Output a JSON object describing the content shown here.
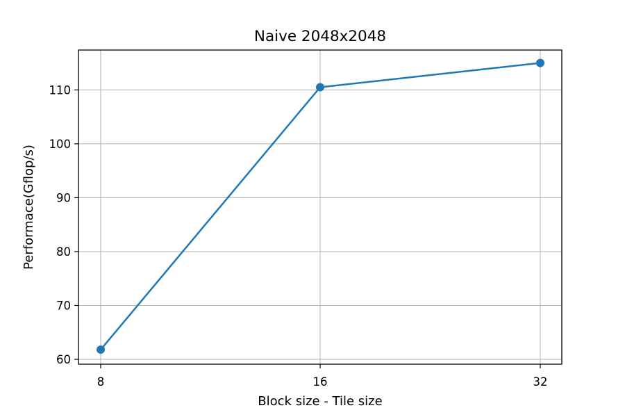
{
  "chart_data": {
    "type": "line",
    "title": "Naive 2048x2048",
    "xlabel": "Block size - Tile size",
    "ylabel": "Performace(Gflop/s)",
    "categories": [
      "8",
      "16",
      "32"
    ],
    "series": [
      {
        "values": [
          61.8,
          110.5,
          115.0
        ],
        "color": "#1f77b4"
      }
    ],
    "yticks": [
      60,
      70,
      80,
      90,
      100,
      110
    ],
    "ylim": [
      59.1,
      117.4
    ],
    "grid": true,
    "marker": "circle"
  }
}
